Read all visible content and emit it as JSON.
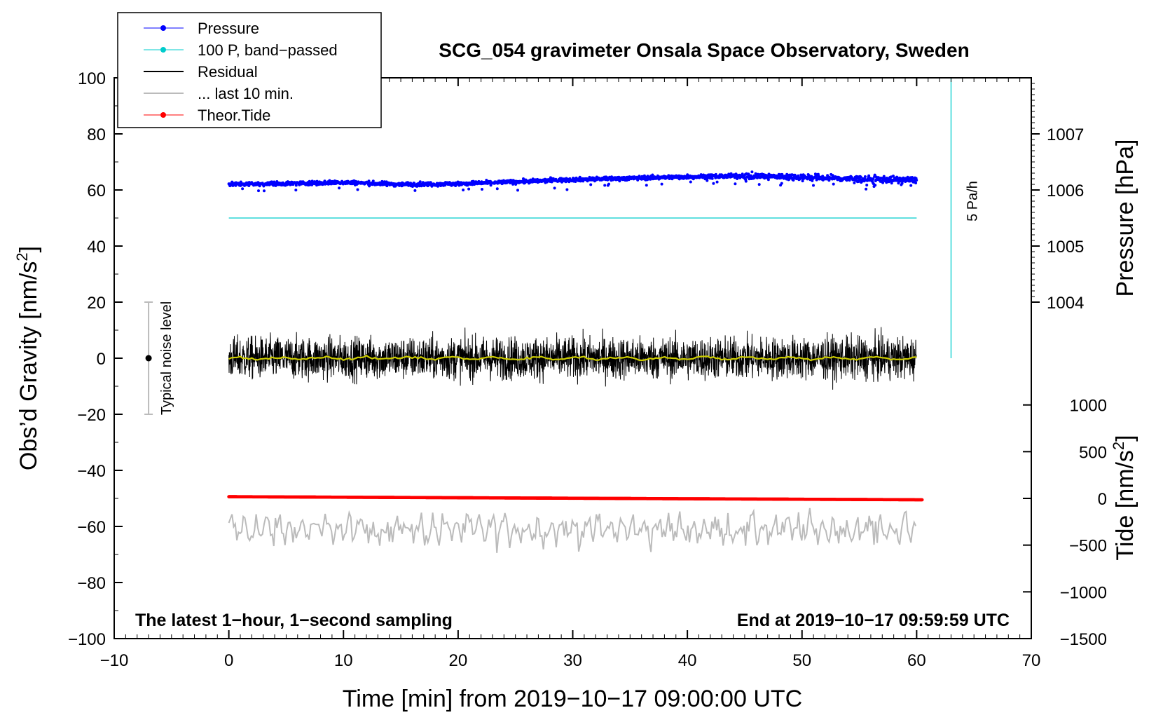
{
  "chart_data": {
    "type": "line",
    "title": "SCG_054 gravimeter Onsala Space Observatory, Sweden",
    "xlabel": "Time [min] from 2019−10−17 09:00:00 UTC",
    "ylabel_left_main": "Obs’d Gravity [nm/s",
    "ylabel_left_sup": "2",
    "ylabel_left_end": "]",
    "ylabel_right_top": "Pressure [hPa]",
    "ylabel_right_bottom_main": "Tide [nm/s",
    "ylabel_right_bottom_sup": "2",
    "ylabel_right_bottom_end": "]",
    "xlim": [
      -10,
      70
    ],
    "ylim": [
      -100,
      100
    ],
    "x_ticks": [
      -10,
      0,
      10,
      20,
      30,
      40,
      50,
      60,
      70
    ],
    "x_tick_labels": [
      "−10",
      "0",
      "10",
      "20",
      "30",
      "40",
      "50",
      "60",
      "70"
    ],
    "y_ticks": [
      -100,
      -80,
      -60,
      -40,
      -20,
      0,
      20,
      40,
      60,
      80,
      100
    ],
    "y_tick_labels": [
      "−100",
      "−80",
      "−60",
      "−40",
      "−20",
      "0",
      "20",
      "40",
      "60",
      "80",
      "100"
    ],
    "pressure_axis": {
      "ticks": [
        1004,
        1005,
        1006,
        1007
      ],
      "tick_labels": [
        "1004",
        "1005",
        "1006",
        "1007"
      ],
      "gravity_at_1004": 20,
      "gravity_per_hPa": 20
    },
    "tide_axis": {
      "ticks": [
        -1500,
        -1000,
        -500,
        0,
        500,
        1000
      ],
      "tick_labels": [
        "−1500",
        "−1000",
        "−500",
        "0",
        "500",
        "1000"
      ],
      "gravity_at_0": -50,
      "gravity_per_1000": 33.33
    },
    "series": [
      {
        "name": "Pressure",
        "color": "#0000ff",
        "style": "dots",
        "x": [
          0,
          5,
          10,
          15,
          20,
          25,
          30,
          35,
          40,
          45,
          50,
          55,
          60
        ],
        "gravity_y": [
          62.0,
          62.3,
          62.7,
          62.0,
          62.2,
          62.9,
          63.7,
          64.2,
          64.7,
          65.0,
          64.6,
          63.9,
          63.5
        ],
        "scatter": 0.8
      },
      {
        "name": "100 P, band−passed",
        "color": "#00cccc",
        "style": "line",
        "x": [
          0,
          60
        ],
        "gravity_y": [
          50,
          50
        ]
      },
      {
        "name": "Residual",
        "color": "#000000",
        "style": "line",
        "x_range": [
          0,
          60
        ],
        "center": 0,
        "amplitude": 9,
        "peak": 14
      },
      {
        "name": "... last 10 min.",
        "color": "#bbbbbb",
        "style": "line",
        "x_range": [
          0,
          60
        ],
        "center": -61,
        "amplitude": 5,
        "peak": 11
      },
      {
        "name": "Theor.Tide",
        "color": "#ff0000",
        "style": "dots",
        "x": [
          0,
          60.5
        ],
        "gravity_y": [
          -49.4,
          -50.5
        ]
      },
      {
        "name": "Residual running mean",
        "color": "#cccc00",
        "style": "line",
        "x_range": [
          0,
          60
        ],
        "center": 0,
        "amplitude": 0.8
      }
    ],
    "legend": {
      "placement": "top-left",
      "entries": [
        "Pressure",
        "100 P, band−passed",
        "Residual",
        "... last 10 min.",
        "Theor.Tide"
      ]
    },
    "annotations": {
      "noise_label": "Typical noise level",
      "noise_bar": {
        "x": -7,
        "y": 0,
        "half_range": 20
      },
      "scale_label": "5 Pa/h",
      "scale_bar": {
        "x": 63,
        "y_from": 0,
        "y_to": 100
      },
      "bottom_left": "The latest 1−hour, 1−second sampling",
      "bottom_right": "End at 2019−10−17 09:59:59 UTC"
    },
    "grid": false
  }
}
